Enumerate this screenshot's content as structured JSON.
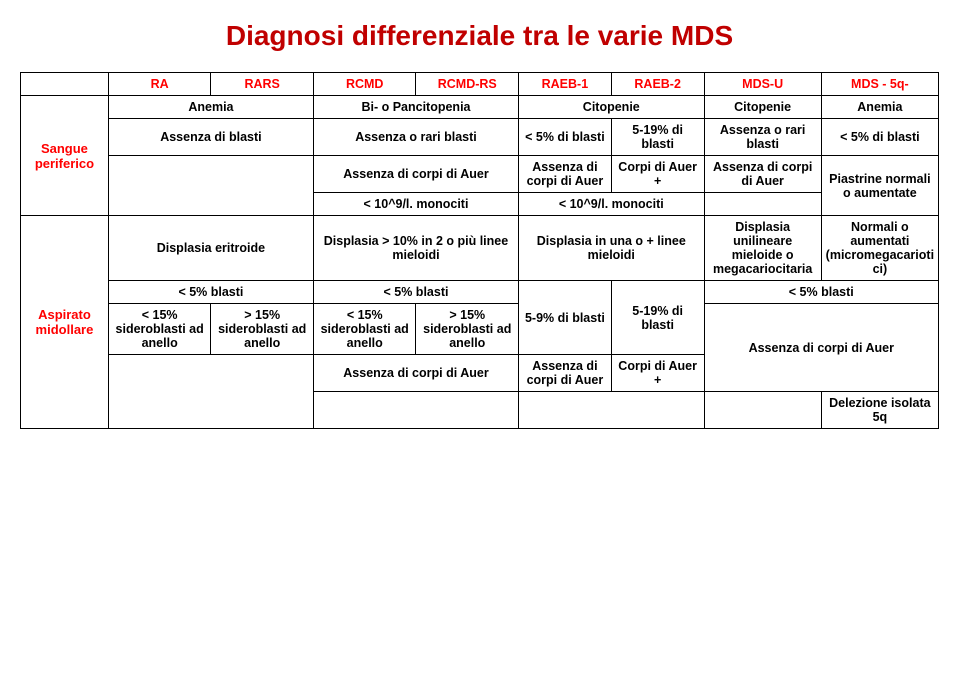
{
  "title": "Diagnosi differenziale tra le varie MDS",
  "colors": {
    "title": "#c00000",
    "header_text": "#ff0000",
    "body_text": "#000000",
    "border": "#000000",
    "background": "#ffffff"
  },
  "font_sizes": {
    "title": 28,
    "cell": 12.5
  },
  "headers": {
    "h1": "RA",
    "h2": "RARS",
    "h3": "RCMD",
    "h4": "RCMD-RS",
    "h5": "RAEB-1",
    "h6": "RAEB-2",
    "h7": "MDS-U",
    "h8": "MDS - 5q-"
  },
  "row_labels": {
    "sangue": "Sangue periferico",
    "aspirato": "Aspirato midollare"
  },
  "r1": {
    "c12": "Anemia",
    "c34": "Bi- o Pancitopenia",
    "c56": "Citopenie",
    "c7": "Citopenie",
    "c8": "Anemia"
  },
  "r2": {
    "c12": "Assenza di blasti",
    "c34": "Assenza o rari blasti",
    "c5": "< 5% di blasti",
    "c6": "5-19% di blasti",
    "c7": "Assenza o rari blasti",
    "c8": "< 5% di blasti"
  },
  "r3": {
    "c34": "Assenza di corpi di Auer",
    "c5": "Assenza di corpi di Auer",
    "c6": "Corpi di Auer +",
    "c7": "Assenza di corpi di Auer"
  },
  "r4": {
    "c34": "< 10^9/l. monociti",
    "c56": "< 10^9/l. monociti",
    "c8": "Piastrine normali o aumentate"
  },
  "r5": {
    "c12": "Displasia eritroide",
    "c34": "Displasia > 10% in 2 o più linee mieloidi",
    "c56": "Displasia in una o + linee mieloidi",
    "c7": "Displasia unilineare mieloide o megacariocitaria",
    "c8": "Normali o aumentati (micromegacariotici)"
  },
  "r6": {
    "c12": "< 5% blasti",
    "c34": "< 5% blasti",
    "c5": "5-9% di blasti",
    "c6": "5-19% di blasti",
    "c78": "< 5% blasti"
  },
  "r7": {
    "c1": "< 15% sideroblasti ad anello",
    "c2": "> 15% sideroblasti ad anello",
    "c3": "< 15% sideroblasti ad anello",
    "c4": "> 15% sideroblasti ad anello"
  },
  "r8": {
    "c34": "Assenza di corpi di Auer",
    "c5": "Assenza di corpi di Auer",
    "c6": "Corpi di Auer +",
    "c78": "Assenza di corpi di Auer"
  },
  "r9": {
    "c8": "Delezione isolata 5q"
  }
}
